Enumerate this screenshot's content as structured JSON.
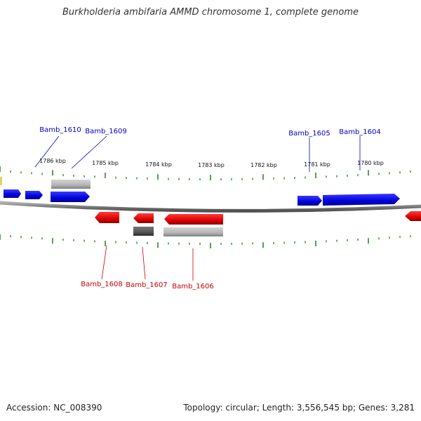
{
  "title": "Burkholderia ambifaria AMMD chromosome 1, complete genome",
  "footer": {
    "accession": "Accession: NC_008390",
    "summary": "Topology: circular; Length: 3,556,545 bp; Genes: 3,281"
  },
  "colors": {
    "forward_gene": "#0000ee",
    "reverse_gene": "#ee0000",
    "pseudo_light": "#b8b8b8",
    "pseudo_dark": "#555555",
    "tick": "#008000",
    "backbone": "#888888",
    "accent_yellow": "#e8d060"
  },
  "scale": {
    "unit": "kbp",
    "ticks": [
      {
        "kbp": 1786,
        "label": "1786 kbp"
      },
      {
        "kbp": 1785,
        "label": "1785 kbp"
      },
      {
        "kbp": 1784,
        "label": "1784 kbp"
      },
      {
        "kbp": 1783,
        "label": "1783 kbp"
      },
      {
        "kbp": 1782,
        "label": "1782 kbp"
      },
      {
        "kbp": 1781,
        "label": "1781 kbp"
      },
      {
        "kbp": 1780,
        "label": "1780 kbp"
      }
    ]
  },
  "gene_labels": {
    "forward": [
      "Bamb_1610",
      "Bamb_1609",
      "Bamb_1605",
      "Bamb_1604"
    ],
    "reverse": [
      "Bamb_1608",
      "Bamb_1607",
      "Bamb_1606"
    ]
  }
}
